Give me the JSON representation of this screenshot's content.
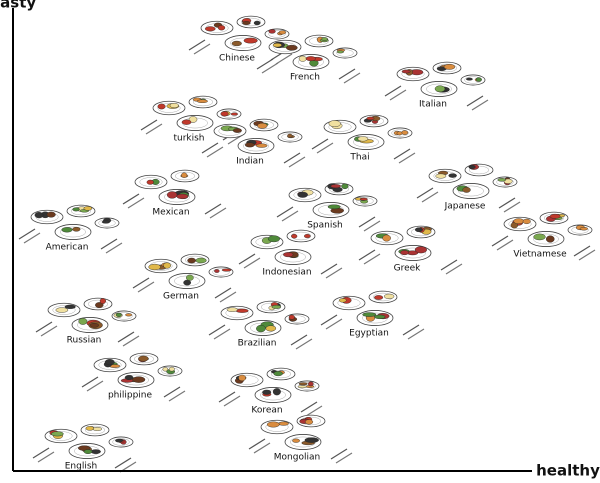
{
  "axes": {
    "y_label": "Tasty",
    "x_label": "healthy"
  },
  "nodes": [
    {
      "label": "Chinese"
    },
    {
      "label": "French"
    },
    {
      "label": "Italian"
    },
    {
      "label": "turkish"
    },
    {
      "label": "Indian"
    },
    {
      "label": "Thai"
    },
    {
      "label": "Mexican"
    },
    {
      "label": "Japanese"
    },
    {
      "label": "American"
    },
    {
      "label": "Spanish"
    },
    {
      "label": "Vietnamese"
    },
    {
      "label": "Indonesian"
    },
    {
      "label": "Greek"
    },
    {
      "label": "German"
    },
    {
      "label": "Russian"
    },
    {
      "label": "Brazilian"
    },
    {
      "label": "Egyptian"
    },
    {
      "label": "philippine"
    },
    {
      "label": "Korean"
    },
    {
      "label": "Mongolian"
    },
    {
      "label": "English"
    }
  ]
}
